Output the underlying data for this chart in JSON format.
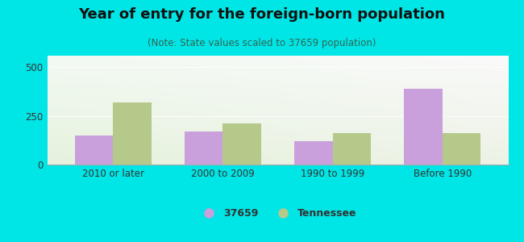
{
  "title": "Year of entry for the foreign-born population",
  "subtitle": "(Note: State values scaled to 37659 population)",
  "categories": [
    "2010 or later",
    "2000 to 2009",
    "1990 to 1999",
    "Before 1990"
  ],
  "values_city": [
    150,
    170,
    120,
    390
  ],
  "values_state": [
    320,
    210,
    160,
    160
  ],
  "bar_color_city": "#c9a0dc",
  "bar_color_state": "#b5c98a",
  "background_outer": "#00e5e5",
  "background_inner_topleft": "#e8f5e8",
  "background_inner_topright": "#f5fffa",
  "background_inner_bottom": "#d8eecc",
  "ylim": [
    0,
    560
  ],
  "yticks": [
    0,
    250,
    500
  ],
  "legend_label_city": "37659",
  "legend_label_state": "Tennessee",
  "bar_width": 0.35,
  "title_fontsize": 13,
  "subtitle_fontsize": 8.5,
  "axis_label_fontsize": 8.5,
  "legend_fontsize": 9
}
